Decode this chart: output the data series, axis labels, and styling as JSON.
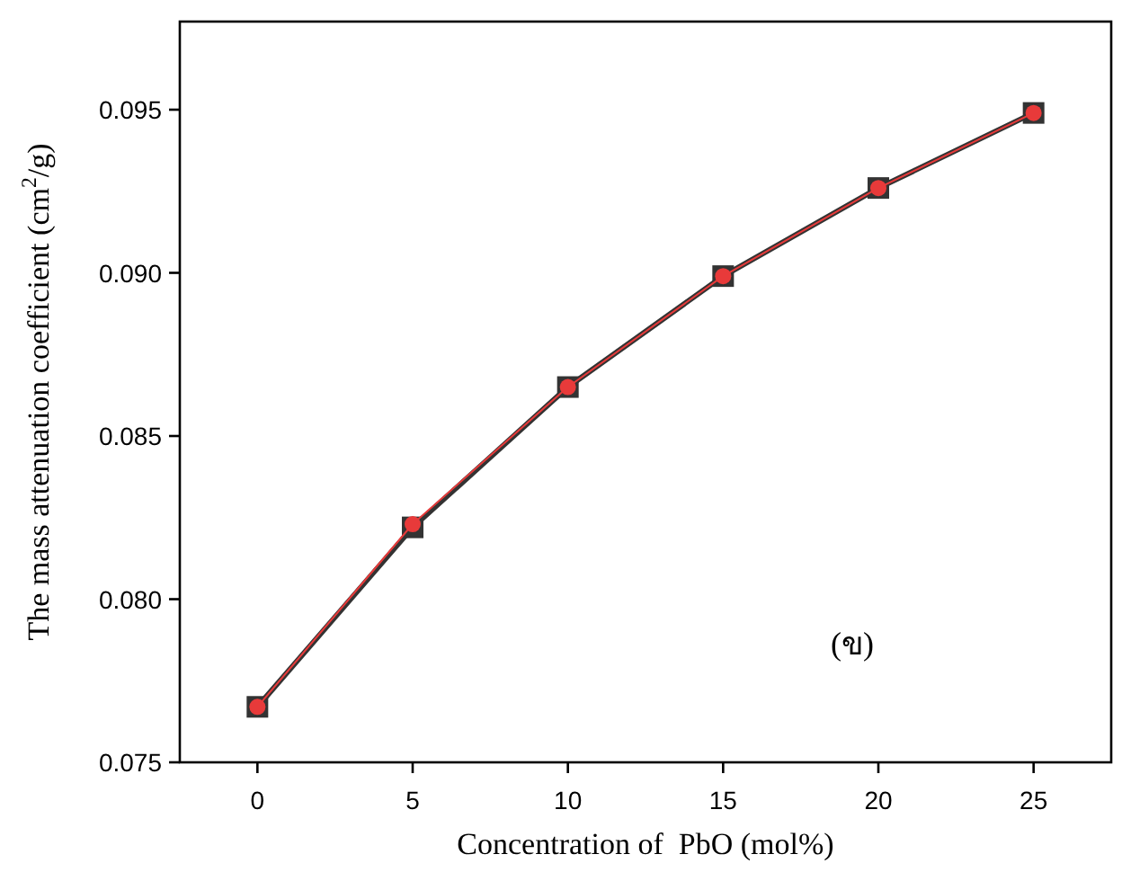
{
  "chart_data": {
    "type": "line",
    "xlabel": "Concentration of  PbO (mol%)",
    "ylabel": "The mass attenuation coefficient (cm$^{2}$/g)",
    "x": [
      0,
      5,
      10,
      15,
      20,
      25
    ],
    "series": [
      {
        "color": "#333333",
        "marker": "square",
        "values": [
          0.0767,
          0.0822,
          0.0865,
          0.0899,
          0.0926,
          0.0949
        ]
      },
      {
        "color": "#e83a3a",
        "marker": "circle",
        "values": [
          0.0767,
          0.0823,
          0.0865,
          0.0899,
          0.0926,
          0.0949
        ]
      }
    ],
    "xlim": [
      -2.5,
      27.5
    ],
    "xticks": [
      0,
      5,
      10,
      15,
      20,
      25
    ],
    "ylim": [
      0.075,
      0.0977
    ],
    "yticks": [
      0.075,
      {
        "value": 0.08,
        "label": "0.080"
      },
      0.085,
      {
        "value": 0.09,
        "label": "0.090"
      },
      0.095
    ],
    "grid": false,
    "line_style": "solid",
    "annotations": [
      "(ข)"
    ]
  }
}
